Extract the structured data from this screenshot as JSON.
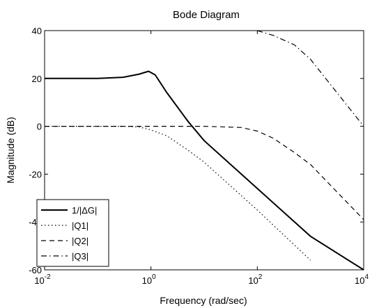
{
  "chart_data": {
    "type": "line",
    "title": "Bode Diagram",
    "xlabel": "Frequency  (rad/sec)",
    "ylabel": "Magnitude (dB)",
    "x_scale": "log",
    "xlim": [
      0.01,
      10000
    ],
    "ylim": [
      -60,
      40
    ],
    "x_ticks": [
      {
        "value": 0.01,
        "base": "10",
        "exp": "-2"
      },
      {
        "value": 1,
        "base": "10",
        "exp": "0"
      },
      {
        "value": 100,
        "base": "10",
        "exp": "2"
      },
      {
        "value": 10000,
        "base": "10",
        "exp": "4"
      }
    ],
    "y_ticks": [
      {
        "value": 40,
        "label": "40"
      },
      {
        "value": 20,
        "label": "20"
      },
      {
        "value": 0,
        "label": "0"
      },
      {
        "value": -20,
        "label": "-20"
      },
      {
        "value": -40,
        "label": "-40"
      },
      {
        "value": -60,
        "label": "-60"
      }
    ],
    "grid": false,
    "legend_position": "bottom-left",
    "series": [
      {
        "name": "1/|ΔG|",
        "style": "solid",
        "x": [
          0.01,
          0.1,
          0.3,
          0.6,
          0.9,
          1.2,
          2,
          5,
          10,
          100,
          1000,
          10000
        ],
        "y": [
          20,
          20,
          20.5,
          21.8,
          23,
          21.5,
          14,
          2,
          -6,
          -26,
          -46,
          -60
        ]
      },
      {
        "name": "|Q1|",
        "style": "dotted",
        "x": [
          0.01,
          0.1,
          0.3,
          0.6,
          1,
          2,
          5,
          10,
          100,
          1000
        ],
        "y": [
          0,
          0,
          0,
          -0.3,
          -1.5,
          -4,
          -10,
          -15,
          -35,
          -56
        ]
      },
      {
        "name": "|Q2|",
        "style": "dashed",
        "x": [
          0.01,
          1,
          10,
          50,
          100,
          200,
          500,
          1000,
          10000
        ],
        "y": [
          0,
          0,
          0,
          -0.5,
          -2,
          -5,
          -11,
          -16,
          -39
        ]
      },
      {
        "name": "|Q3|",
        "style": "dashdot",
        "x": [
          100,
          200,
          500,
          1000,
          10000
        ],
        "y": [
          40,
          38,
          34,
          28,
          0
        ]
      }
    ]
  }
}
